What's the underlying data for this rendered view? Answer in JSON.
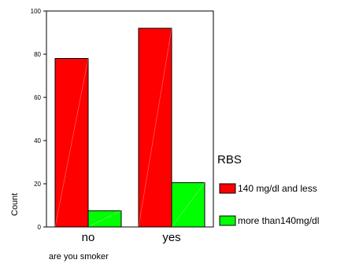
{
  "chart_data": {
    "type": "bar",
    "categories": [
      "no",
      "yes"
    ],
    "series": [
      {
        "name": "140 mg/dl and less",
        "values": [
          78,
          92
        ],
        "color": "#ff0000"
      },
      {
        "name": "more than140mg/dl",
        "values": [
          7.5,
          20.5
        ],
        "color": "#00ff00"
      }
    ],
    "xlabel": "are you smoker",
    "ylabel": "Count",
    "ylim": [
      0,
      100
    ],
    "yticks": [
      0,
      20,
      40,
      60,
      80,
      100
    ],
    "legend_title": "RBS",
    "legend_position": "right",
    "grid": false
  }
}
